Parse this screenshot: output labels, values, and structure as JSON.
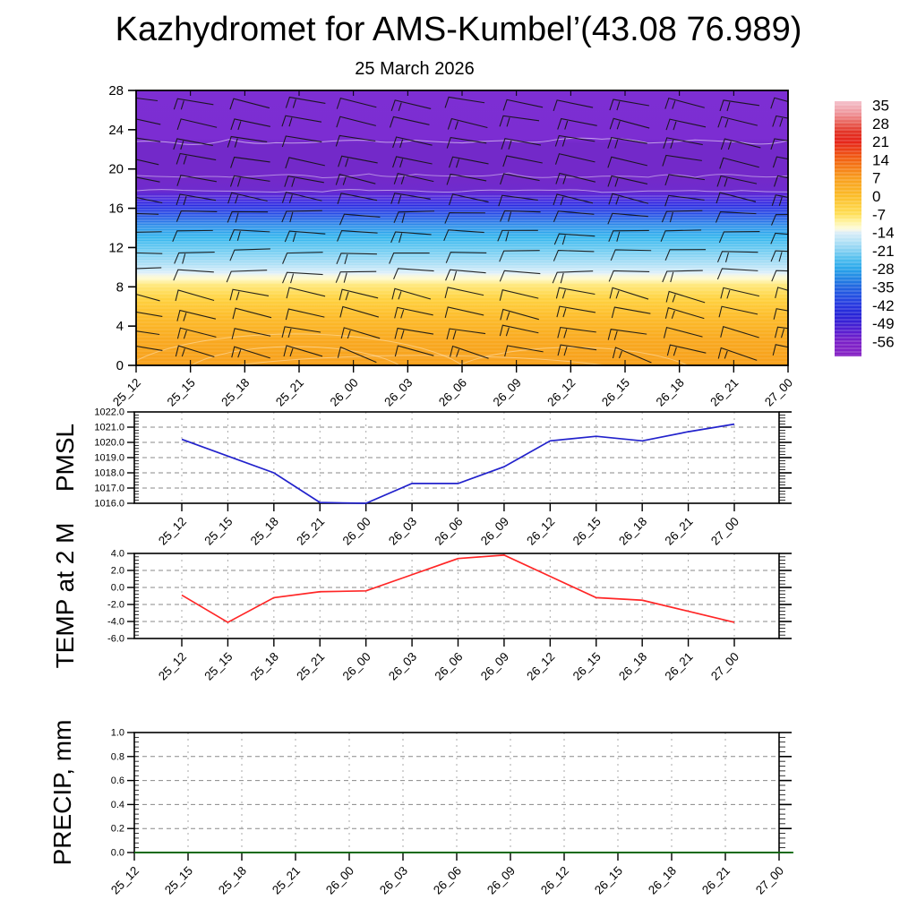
{
  "header": {
    "title": "Kazhydromet for AMS-Kumbel’(43.08 76.989)",
    "date": "25 March 2026"
  },
  "time_labels": [
    "25_12",
    "25_15",
    "25_18",
    "25_21",
    "26_00",
    "26_03",
    "26_06",
    "26_09",
    "26_12",
    "26_15",
    "26_18",
    "26_21",
    "27_00"
  ],
  "colors": {
    "pmsl_line": "#2222cc",
    "temp_line": "#ff2626",
    "precip_line": "#0a6a0a",
    "grid": "#999999",
    "barb": "#141414"
  },
  "chart_data": [
    {
      "type": "heatmap",
      "name": "temperature-height cross-section",
      "title": "25 March 2026",
      "x_categories": [
        "25_12",
        "25_15",
        "25_18",
        "25_21",
        "26_00",
        "26_03",
        "26_06",
        "26_09",
        "26_12",
        "26_15",
        "26_18",
        "26_21",
        "27_00"
      ],
      "y_axis": {
        "label": "height, km (unlabeled in plot)",
        "ticks": [
          28,
          24,
          20,
          16,
          12,
          8,
          4,
          0
        ],
        "range": [
          0,
          28
        ]
      },
      "colorbar_ticks_degC": [
        "35",
        "28",
        "21",
        "14",
        "7",
        "0",
        "-7",
        "-14",
        "-21",
        "-28",
        "-35",
        "-42",
        "-49",
        "-56"
      ],
      "approx_temperature_profile": [
        {
          "height_km": 0,
          "temp_c": 4
        },
        {
          "height_km": 4,
          "temp_c": -1
        },
        {
          "height_km": 8,
          "temp_c": -8
        },
        {
          "height_km": 9,
          "temp_c": -12
        },
        {
          "height_km": 12,
          "temp_c": -25
        },
        {
          "height_km": 14,
          "temp_c": -33
        },
        {
          "height_km": 16,
          "temp_c": -47
        },
        {
          "height_km": 18,
          "temp_c": -55
        },
        {
          "height_km": 28,
          "temp_c": -55
        }
      ],
      "overlay": "wind barbs at every 3 h time step and every model level; thin white contour lines",
      "legend_position": "right colorbar"
    },
    {
      "type": "line",
      "name": "PMSL",
      "color": "#2222cc",
      "x": [
        "25_12",
        "25_15",
        "25_18",
        "25_21",
        "26_00",
        "26_03",
        "26_06",
        "26_09",
        "26_12",
        "26_15",
        "26_18",
        "26_21",
        "27_00"
      ],
      "values": [
        1020.2,
        1019.1,
        1018.0,
        1016.05,
        1016.0,
        1017.3,
        1017.3,
        1018.4,
        1020.1,
        1020.4,
        1020.1,
        1020.7,
        1021.2
      ],
      "ylim": [
        1016.0,
        1022.0
      ],
      "ytick_labels": [
        "1022.0",
        "1021.0",
        "1020.0",
        "1019.0",
        "1018.0",
        "1017.0",
        "1016.0"
      ],
      "grid": "dashed"
    },
    {
      "type": "line",
      "name": "TEMP at 2 M",
      "color": "#ff2626",
      "x": [
        "25_12",
        "25_15",
        "25_18",
        "25_21",
        "26_00",
        "26_03",
        "26_06",
        "26_09",
        "26_12",
        "26_15",
        "26_18",
        "26_21",
        "27_00"
      ],
      "values": [
        -0.9,
        -4.1,
        -1.2,
        -0.5,
        -0.4,
        1.5,
        3.4,
        3.8,
        1.3,
        -1.2,
        -1.5,
        -2.8,
        -4.1
      ],
      "ylim": [
        -6.0,
        4.0
      ],
      "ytick_labels": [
        "4.0",
        "2.0",
        "0.0",
        "-2.0",
        "-4.0",
        "-6.0"
      ],
      "grid": "dashed"
    },
    {
      "type": "line",
      "name": "PRECIP, mm",
      "color": "#0a6a0a",
      "x": [
        "25_12",
        "25_15",
        "25_18",
        "25_21",
        "26_00",
        "26_03",
        "26_06",
        "26_09",
        "26_12",
        "26_15",
        "26_18",
        "26_21",
        "27_00"
      ],
      "values": [
        0,
        0,
        0,
        0,
        0,
        0,
        0,
        0,
        0,
        0,
        0,
        0,
        0
      ],
      "ylim": [
        0.0,
        1.0
      ],
      "ytick_labels": [
        "1.0",
        "0.8",
        "0.6",
        "0.4",
        "0.2",
        "0.0"
      ],
      "grid": "dashed"
    }
  ]
}
